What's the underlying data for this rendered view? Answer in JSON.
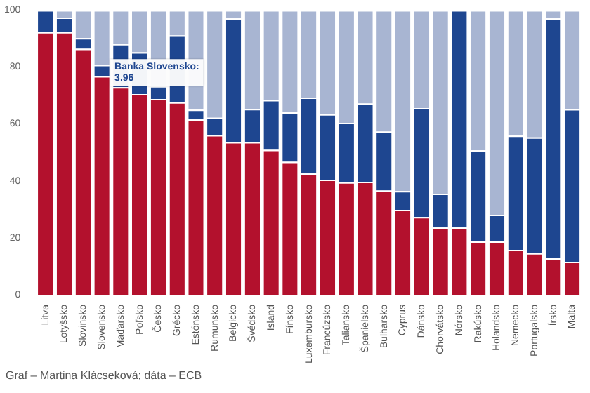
{
  "chart_data": {
    "type": "bar",
    "stacked": true,
    "grid": false,
    "categories": [
      "Litva",
      "Lotyšsko",
      "Slovinsko",
      "Slovensko",
      "Maďarsko",
      "Poľsko",
      "Česko",
      "Grécko",
      "Estónsko",
      "Rumunsko",
      "Belgicko",
      "Švédsko",
      "Island",
      "Fínsko",
      "Luxembursko",
      "Francúzsko",
      "Taliansko",
      "Španielsko",
      "Bulharsko",
      "Cyprus",
      "Dánsko",
      "Chorvátsko",
      "Nórsko",
      "Rakúsko",
      "Holandsko",
      "Nemecko",
      "Portugalsko",
      "Írsko",
      "Malta"
    ],
    "series": [
      {
        "color": "#b3112d",
        "values": [
          92.3,
          92.3,
          86.4,
          76.8,
          72.9,
          70.5,
          68.8,
          67.6,
          61.6,
          56.1,
          53.6,
          53.6,
          50.9,
          46.7,
          42.6,
          40.4,
          39.5,
          39.7,
          36.6,
          29.8,
          27.3,
          23.6,
          23.6,
          18.7,
          18.7,
          15.8,
          14.6,
          12.8,
          11.6
        ]
      },
      {
        "color": "#1e4690",
        "values": [
          7.7,
          5.1,
          3.8,
          3.96,
          15.2,
          14.7,
          4.5,
          23.5,
          3.4,
          6.1,
          43.5,
          11.7,
          17.5,
          17.4,
          26.7,
          23.0,
          20.9,
          27.5,
          20.7,
          6.6,
          38.3,
          11.9,
          76.4,
          32.0,
          9.4,
          40.1,
          40.7,
          84.3,
          53.6
        ]
      },
      {
        "color": "#a8b5d2",
        "values": [
          0,
          2.6,
          9.8,
          19.2,
          11.9,
          14.8,
          26.7,
          8.9,
          35.0,
          37.8,
          2.9,
          34.7,
          31.6,
          35.9,
          30.7,
          36.6,
          39.6,
          32.8,
          42.7,
          63.6,
          34.4,
          64.5,
          0,
          49.3,
          71.9,
          44.1,
          44.7,
          2.9,
          34.8
        ]
      }
    ],
    "ylim": [
      0,
      100
    ],
    "yticks": [
      0,
      20,
      40,
      60,
      80,
      100
    ],
    "annotations": [
      {
        "text": "Banka Slovensko: 3.96",
        "x": "Slovensko",
        "y": 80.8
      },
      "Graf – Martina Klácseková; dáta – ECB"
    ]
  }
}
